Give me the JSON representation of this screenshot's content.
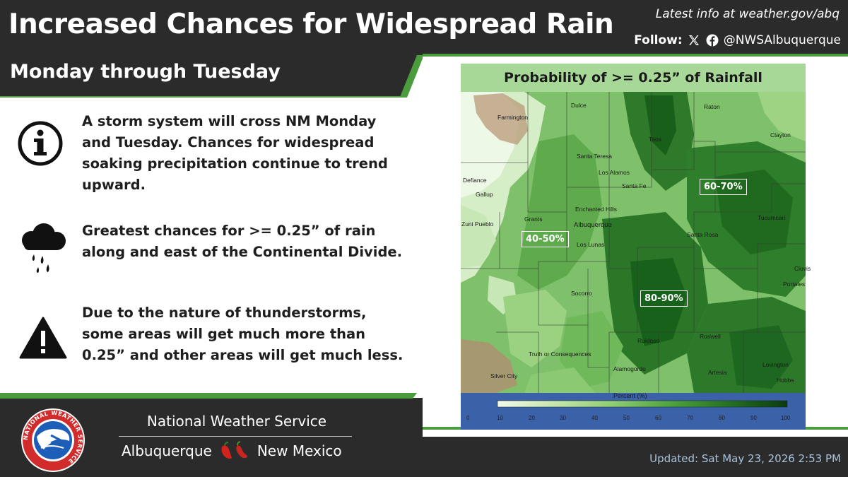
{
  "header": {
    "title": "Increased Chances for Widespread Rain",
    "latest_info": "Latest info at weather.gov/abq",
    "follow_label": "Follow:",
    "social_handle": "@NWSAlbuquerque",
    "social_icons": [
      "x-icon",
      "facebook-icon"
    ]
  },
  "subtitle": "Monday through Tuesday",
  "bullets": [
    {
      "icon": "info-icon",
      "text": "A storm system will cross NM Monday and Tuesday.  Chances for widespread soaking precipitation continue to trend upward."
    },
    {
      "icon": "rain-cloud-icon",
      "text": "Greatest chances for >= 0.25” of rain along and east of the Continental Divide."
    },
    {
      "icon": "warning-icon",
      "text": "Due to the nature of thunderstorms, some areas will get much more than 0.25” and other areas will get much less."
    }
  ],
  "map": {
    "title": "Probability of >= 0.25” of Rainfall",
    "cities": [
      "Farmington",
      "Dulce",
      "Raton",
      "Clayton",
      "Taos",
      "Santa Teresa",
      "Los Alamos",
      "Defiance",
      "Gallup",
      "Santa Fe",
      "Enchanted Hills",
      "Grants",
      "Albuquerque",
      "Zuni Pueblo",
      "Los Lunas",
      "Santa Rosa",
      "Tucumcari",
      "Clovis",
      "Portales",
      "Socorro",
      "Roswell",
      "Ruidoso",
      "Truth or Consequences",
      "Alamogordo",
      "Artesia",
      "Lovington",
      "Silver City",
      "Hobbs"
    ],
    "probability_labels": [
      "60-70%",
      "40-50%",
      "80-90%"
    ],
    "legend_title": "Percent (%)",
    "legend_ticks": [
      "0",
      "10",
      "20",
      "30",
      "40",
      "50",
      "60",
      "70",
      "80",
      "90",
      "100"
    ],
    "legend_colors": [
      "#f1f9ea",
      "#d2ecc0",
      "#b3dd9a",
      "#8fcc74",
      "#6cb855",
      "#4ea23f",
      "#37892f",
      "#257124",
      "#175a1a",
      "#0e4512"
    ]
  },
  "footer": {
    "org_name": "National Weather Service",
    "city": "Albuquerque",
    "state": "New Mexico",
    "chile_icon": "red-green-chile-icon",
    "updated": "Updated: Sat May 23, 2026 2:53 PM",
    "logo_text": "NATIONAL WEATHER SERVICE"
  }
}
